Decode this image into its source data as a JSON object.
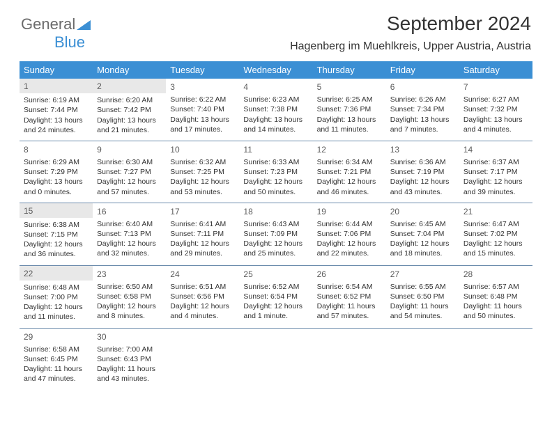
{
  "logo": {
    "text1": "General",
    "text2": "Blue"
  },
  "title": "September 2024",
  "location": "Hagenberg im Muehlkreis, Upper Austria, Austria",
  "colors": {
    "header_bg": "#3b8fd4",
    "header_text": "#ffffff",
    "row_border": "#6b8bac",
    "shaded_cell": "#e8e8e8",
    "body_text": "#333333",
    "logo_gray": "#6b6b6b",
    "logo_blue": "#3b8fd4"
  },
  "day_headers": [
    "Sunday",
    "Monday",
    "Tuesday",
    "Wednesday",
    "Thursday",
    "Friday",
    "Saturday"
  ],
  "weeks": [
    [
      {
        "n": "1",
        "shaded": true,
        "sunrise": "Sunrise: 6:19 AM",
        "sunset": "Sunset: 7:44 PM",
        "d1": "Daylight: 13 hours",
        "d2": "and 24 minutes."
      },
      {
        "n": "2",
        "shaded": true,
        "sunrise": "Sunrise: 6:20 AM",
        "sunset": "Sunset: 7:42 PM",
        "d1": "Daylight: 13 hours",
        "d2": "and 21 minutes."
      },
      {
        "n": "3",
        "sunrise": "Sunrise: 6:22 AM",
        "sunset": "Sunset: 7:40 PM",
        "d1": "Daylight: 13 hours",
        "d2": "and 17 minutes."
      },
      {
        "n": "4",
        "sunrise": "Sunrise: 6:23 AM",
        "sunset": "Sunset: 7:38 PM",
        "d1": "Daylight: 13 hours",
        "d2": "and 14 minutes."
      },
      {
        "n": "5",
        "sunrise": "Sunrise: 6:25 AM",
        "sunset": "Sunset: 7:36 PM",
        "d1": "Daylight: 13 hours",
        "d2": "and 11 minutes."
      },
      {
        "n": "6",
        "sunrise": "Sunrise: 6:26 AM",
        "sunset": "Sunset: 7:34 PM",
        "d1": "Daylight: 13 hours",
        "d2": "and 7 minutes."
      },
      {
        "n": "7",
        "sunrise": "Sunrise: 6:27 AM",
        "sunset": "Sunset: 7:32 PM",
        "d1": "Daylight: 13 hours",
        "d2": "and 4 minutes."
      }
    ],
    [
      {
        "n": "8",
        "sunrise": "Sunrise: 6:29 AM",
        "sunset": "Sunset: 7:29 PM",
        "d1": "Daylight: 13 hours",
        "d2": "and 0 minutes."
      },
      {
        "n": "9",
        "sunrise": "Sunrise: 6:30 AM",
        "sunset": "Sunset: 7:27 PM",
        "d1": "Daylight: 12 hours",
        "d2": "and 57 minutes."
      },
      {
        "n": "10",
        "sunrise": "Sunrise: 6:32 AM",
        "sunset": "Sunset: 7:25 PM",
        "d1": "Daylight: 12 hours",
        "d2": "and 53 minutes."
      },
      {
        "n": "11",
        "sunrise": "Sunrise: 6:33 AM",
        "sunset": "Sunset: 7:23 PM",
        "d1": "Daylight: 12 hours",
        "d2": "and 50 minutes."
      },
      {
        "n": "12",
        "sunrise": "Sunrise: 6:34 AM",
        "sunset": "Sunset: 7:21 PM",
        "d1": "Daylight: 12 hours",
        "d2": "and 46 minutes."
      },
      {
        "n": "13",
        "sunrise": "Sunrise: 6:36 AM",
        "sunset": "Sunset: 7:19 PM",
        "d1": "Daylight: 12 hours",
        "d2": "and 43 minutes."
      },
      {
        "n": "14",
        "sunrise": "Sunrise: 6:37 AM",
        "sunset": "Sunset: 7:17 PM",
        "d1": "Daylight: 12 hours",
        "d2": "and 39 minutes."
      }
    ],
    [
      {
        "n": "15",
        "shaded": true,
        "sunrise": "Sunrise: 6:38 AM",
        "sunset": "Sunset: 7:15 PM",
        "d1": "Daylight: 12 hours",
        "d2": "and 36 minutes."
      },
      {
        "n": "16",
        "sunrise": "Sunrise: 6:40 AM",
        "sunset": "Sunset: 7:13 PM",
        "d1": "Daylight: 12 hours",
        "d2": "and 32 minutes."
      },
      {
        "n": "17",
        "sunrise": "Sunrise: 6:41 AM",
        "sunset": "Sunset: 7:11 PM",
        "d1": "Daylight: 12 hours",
        "d2": "and 29 minutes."
      },
      {
        "n": "18",
        "sunrise": "Sunrise: 6:43 AM",
        "sunset": "Sunset: 7:09 PM",
        "d1": "Daylight: 12 hours",
        "d2": "and 25 minutes."
      },
      {
        "n": "19",
        "sunrise": "Sunrise: 6:44 AM",
        "sunset": "Sunset: 7:06 PM",
        "d1": "Daylight: 12 hours",
        "d2": "and 22 minutes."
      },
      {
        "n": "20",
        "sunrise": "Sunrise: 6:45 AM",
        "sunset": "Sunset: 7:04 PM",
        "d1": "Daylight: 12 hours",
        "d2": "and 18 minutes."
      },
      {
        "n": "21",
        "sunrise": "Sunrise: 6:47 AM",
        "sunset": "Sunset: 7:02 PM",
        "d1": "Daylight: 12 hours",
        "d2": "and 15 minutes."
      }
    ],
    [
      {
        "n": "22",
        "shaded": true,
        "sunrise": "Sunrise: 6:48 AM",
        "sunset": "Sunset: 7:00 PM",
        "d1": "Daylight: 12 hours",
        "d2": "and 11 minutes."
      },
      {
        "n": "23",
        "sunrise": "Sunrise: 6:50 AM",
        "sunset": "Sunset: 6:58 PM",
        "d1": "Daylight: 12 hours",
        "d2": "and 8 minutes."
      },
      {
        "n": "24",
        "sunrise": "Sunrise: 6:51 AM",
        "sunset": "Sunset: 6:56 PM",
        "d1": "Daylight: 12 hours",
        "d2": "and 4 minutes."
      },
      {
        "n": "25",
        "sunrise": "Sunrise: 6:52 AM",
        "sunset": "Sunset: 6:54 PM",
        "d1": "Daylight: 12 hours",
        "d2": "and 1 minute."
      },
      {
        "n": "26",
        "sunrise": "Sunrise: 6:54 AM",
        "sunset": "Sunset: 6:52 PM",
        "d1": "Daylight: 11 hours",
        "d2": "and 57 minutes."
      },
      {
        "n": "27",
        "sunrise": "Sunrise: 6:55 AM",
        "sunset": "Sunset: 6:50 PM",
        "d1": "Daylight: 11 hours",
        "d2": "and 54 minutes."
      },
      {
        "n": "28",
        "sunrise": "Sunrise: 6:57 AM",
        "sunset": "Sunset: 6:48 PM",
        "d1": "Daylight: 11 hours",
        "d2": "and 50 minutes."
      }
    ],
    [
      {
        "n": "29",
        "sunrise": "Sunrise: 6:58 AM",
        "sunset": "Sunset: 6:45 PM",
        "d1": "Daylight: 11 hours",
        "d2": "and 47 minutes."
      },
      {
        "n": "30",
        "sunrise": "Sunrise: 7:00 AM",
        "sunset": "Sunset: 6:43 PM",
        "d1": "Daylight: 11 hours",
        "d2": "and 43 minutes."
      },
      null,
      null,
      null,
      null,
      null
    ]
  ]
}
